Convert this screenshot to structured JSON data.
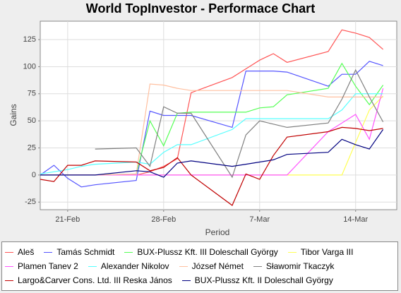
{
  "chart_data": {
    "type": "line",
    "title": "World TopInvestor - Performace Chart",
    "x_label": "Period",
    "y_label": "Gains",
    "x": [
      "19-Feb",
      "20-Feb",
      "21-Feb",
      "22-Feb",
      "23-Feb",
      "26-Feb",
      "27-Feb",
      "28-Feb",
      "1-Mar",
      "2-Mar",
      "5-Mar",
      "6-Mar",
      "7-Mar",
      "8-Mar",
      "9-Mar",
      "12-Mar",
      "13-Mar",
      "14-Mar",
      "15-Mar",
      "16-Mar"
    ],
    "xlim": [
      "19-Feb",
      "17-Mar"
    ],
    "xticks": [
      "21-Feb",
      "28-Feb",
      "7-Mar",
      "14-Mar"
    ],
    "ylim": [
      -32,
      142
    ],
    "yticks": [
      -25,
      0,
      25,
      50,
      75,
      100,
      125
    ],
    "grid": true,
    "series": [
      {
        "name": "Aleš",
        "color": "#ff5555",
        "values": [
          0,
          0,
          0,
          0,
          0,
          0,
          3,
          8,
          15,
          76,
          90,
          98,
          106,
          112,
          104,
          114,
          134,
          131,
          127,
          116
        ]
      },
      {
        "name": "Tamás Schmidt",
        "color": "#5555ff",
        "values": [
          0,
          9,
          -3,
          -11,
          -9,
          -5,
          59,
          55,
          55,
          55,
          44,
          96,
          96,
          96,
          95,
          82,
          93,
          93,
          105,
          101
        ]
      },
      {
        "name": "BUX-Plussz Kft. III Doleschall György",
        "color": "#55ff55",
        "values": [
          0,
          0,
          0,
          0,
          0,
          1,
          50,
          27,
          57,
          58,
          58,
          58,
          62,
          63,
          74,
          80,
          103,
          82,
          65,
          83
        ]
      },
      {
        "name": "Tibor Varga III",
        "color": "#ffff55",
        "values": [
          0,
          0,
          0,
          0,
          0,
          0,
          0,
          0,
          0,
          0,
          0,
          0,
          0,
          0,
          0,
          0,
          0,
          30,
          60,
          73
        ]
      },
      {
        "name": "Plamen Tanev 2",
        "color": "#ff55ff",
        "values": [
          0,
          0,
          0,
          0,
          0,
          0,
          0,
          0,
          0,
          0,
          0,
          0,
          0,
          0,
          0,
          40,
          48,
          56,
          33,
          80
        ]
      },
      {
        "name": "Alexander Nikolov",
        "color": "#55ffff",
        "values": [
          1,
          3,
          5,
          8,
          10,
          12,
          10,
          21,
          28,
          28,
          42,
          52,
          52,
          52,
          52,
          52,
          60,
          75,
          75,
          75
        ]
      },
      {
        "name": "József Német",
        "color": "#ffc0a0",
        "values": [
          0,
          0,
          0,
          0,
          0,
          1,
          84,
          83,
          80,
          78,
          78,
          78,
          78,
          78,
          78,
          72,
          72,
          72,
          72,
          72
        ]
      },
      {
        "name": "Sławomir Tkaczyk",
        "color": "#808080",
        "values": [
          null,
          null,
          null,
          null,
          24,
          25,
          8,
          63,
          57,
          57,
          -2,
          37,
          50,
          47,
          44,
          48,
          70,
          97,
          72,
          49
        ]
      },
      {
        "name": "Largo&Carver Cons. Ltd. III Reska János",
        "color": "#c00000",
        "values": [
          -4,
          -6,
          9,
          9,
          13,
          12,
          4,
          7,
          16,
          0,
          -28,
          1,
          -4,
          18,
          35,
          40,
          44,
          43,
          41,
          43
        ]
      },
      {
        "name": "BUX-Plussz Kft. II Doleschall György",
        "color": "#000080",
        "values": [
          0,
          0,
          0,
          0,
          0,
          4,
          3,
          -2,
          11,
          13,
          8,
          10,
          12,
          14,
          19,
          21,
          33,
          28,
          24,
          42
        ]
      }
    ]
  }
}
